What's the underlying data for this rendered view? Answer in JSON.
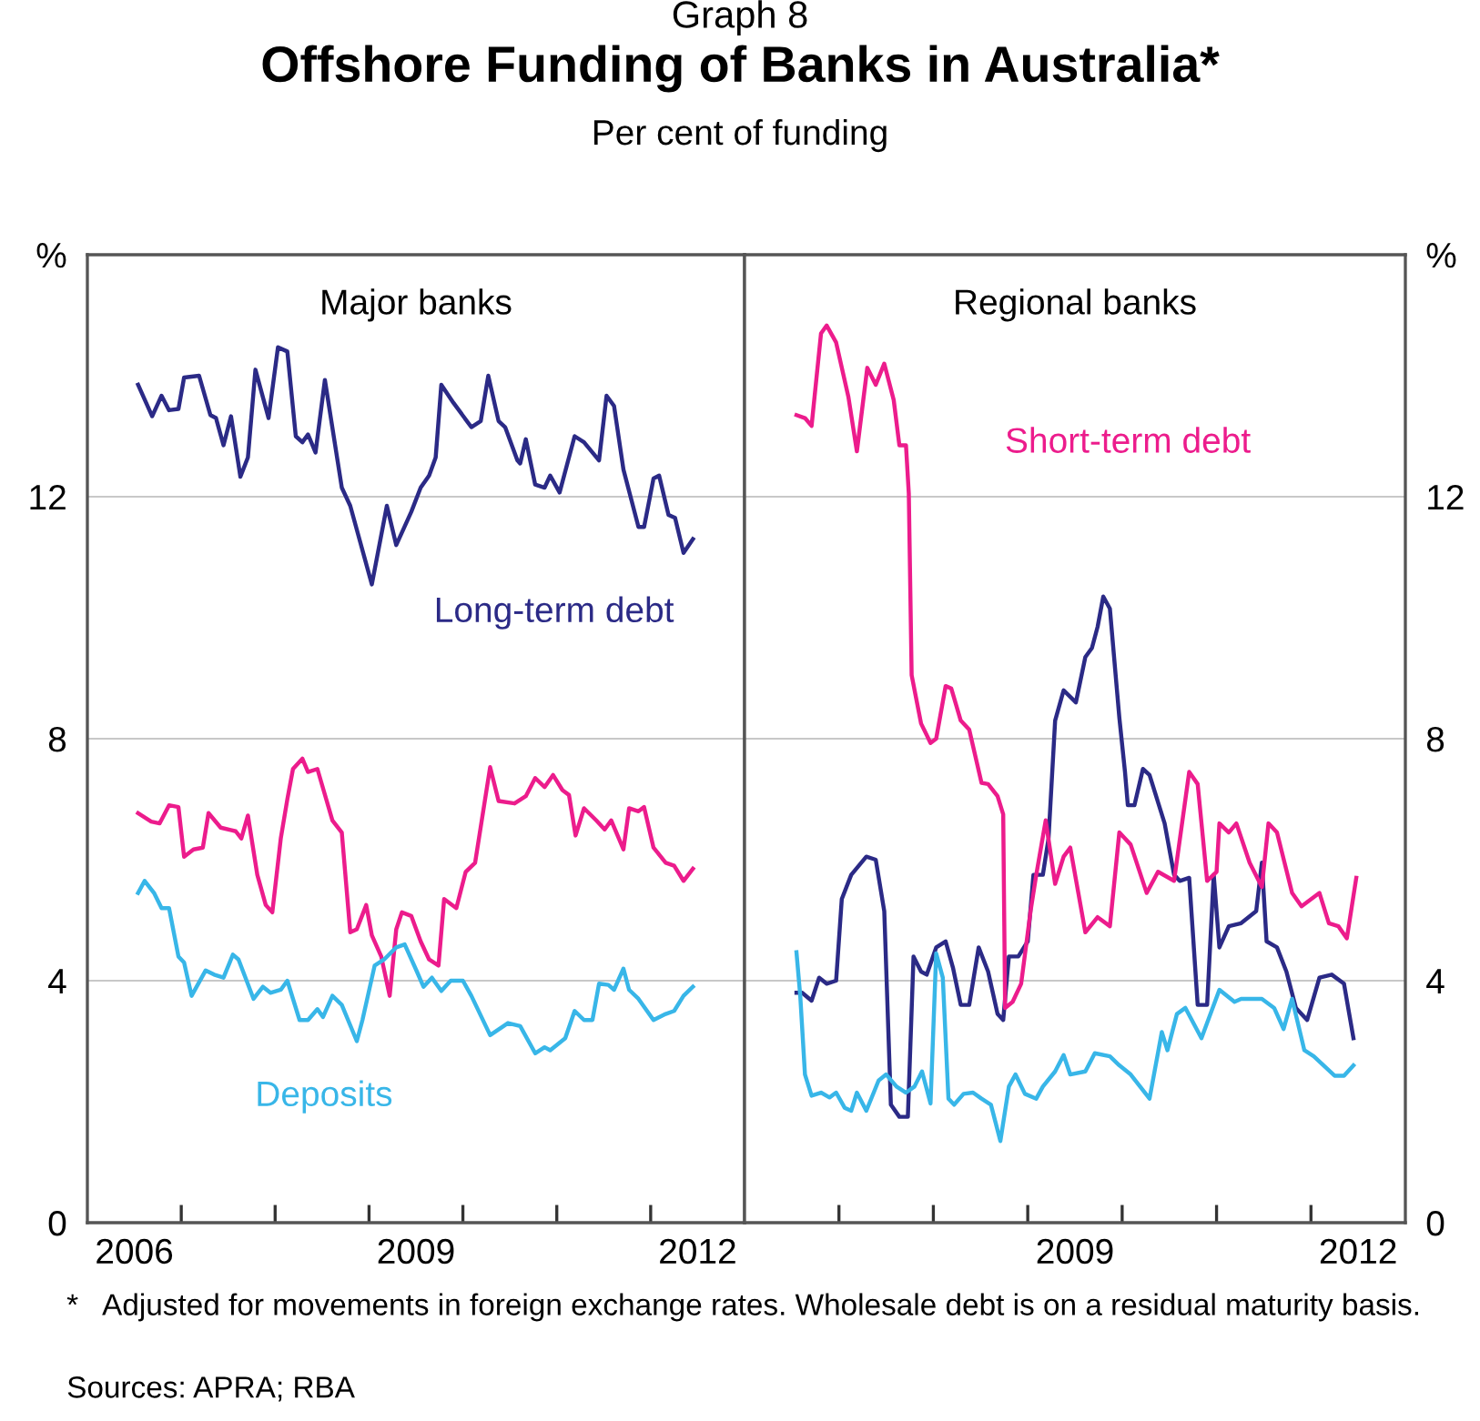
{
  "chart_data": [
    {
      "type": "line",
      "title": "Major banks",
      "annotations": [
        "Graph 8",
        "Offshore Funding of Banks in Australia*",
        "Per cent of funding",
        "*   Adjusted for movements in foreign exchange rates. Wholesale debt is on a residual maturity basis.",
        "Sources: APRA; RBA"
      ],
      "xlim": [
        2006,
        2013
      ],
      "ylim": [
        0,
        16
      ],
      "xticks": [
        {
          "value": 2006.5,
          "label": "2006"
        },
        {
          "value": 2007,
          "label": null
        },
        {
          "value": 2008,
          "label": null
        },
        {
          "value": 2009,
          "label": null
        },
        {
          "value": 2009.5,
          "label": "2009"
        },
        {
          "value": 2010,
          "label": null
        },
        {
          "value": 2011,
          "label": null
        },
        {
          "value": 2012,
          "label": null
        },
        {
          "value": 2012.5,
          "label": "2012"
        }
      ],
      "yticks": [
        0,
        4,
        8,
        12,
        {
          "value": 16,
          "label": "%"
        }
      ],
      "grid": "y",
      "legend": false,
      "line_style": "solid",
      "marker": "none",
      "series": [
        {
          "name": "Long-term debt",
          "color": "#2b2a86",
          "x": [
            2006.54,
            2006.69,
            2006.79,
            2006.87,
            2006.97,
            2007.03,
            2007.19,
            2007.31,
            2007.37,
            2007.45,
            2007.53,
            2007.63,
            2007.71,
            2007.79,
            2007.93,
            2008.03,
            2008.13,
            2008.22,
            2008.29,
            2008.35,
            2008.43,
            2008.53,
            2008.71,
            2008.8,
            2009.03,
            2009.19,
            2009.29,
            2009.45,
            2009.55,
            2009.64,
            2009.71,
            2009.77,
            2009.9,
            2010.09,
            2010.19,
            2010.27,
            2010.38,
            2010.45,
            2010.58,
            2010.61,
            2010.67,
            2010.77,
            2010.87,
            2010.93,
            2011.03,
            2011.19,
            2011.29,
            2011.45,
            2011.53,
            2011.61,
            2011.71,
            2011.87,
            2011.93,
            2012.03,
            2012.09,
            2012.19,
            2012.26,
            2012.35,
            2012.45
          ],
          "values": [
            13.85,
            13.33,
            13.67,
            13.43,
            13.45,
            13.97,
            14.0,
            13.35,
            13.3,
            12.85,
            13.33,
            12.33,
            12.65,
            14.1,
            13.3,
            14.47,
            14.4,
            13.0,
            12.9,
            13.03,
            12.73,
            13.93,
            12.15,
            11.85,
            10.55,
            11.85,
            11.2,
            11.75,
            12.15,
            12.35,
            12.65,
            13.85,
            13.55,
            13.15,
            13.25,
            14.0,
            13.25,
            13.15,
            12.6,
            12.55,
            12.95,
            12.2,
            12.15,
            12.35,
            12.07,
            13.0,
            12.9,
            12.6,
            13.67,
            13.5,
            12.45,
            11.5,
            11.5,
            12.3,
            12.35,
            11.7,
            11.65,
            11.07,
            11.3
          ]
        },
        {
          "color": "#ec1c8c",
          "x": [
            2006.54,
            2006.68,
            2006.77,
            2006.87,
            2006.97,
            2007.03,
            2007.13,
            2007.23,
            2007.29,
            2007.42,
            2007.58,
            2007.64,
            2007.71,
            2007.81,
            2007.9,
            2007.97,
            2008.06,
            2008.13,
            2008.19,
            2008.29,
            2008.35,
            2008.45,
            2008.61,
            2008.71,
            2008.8,
            2008.87,
            2008.97,
            2009.03,
            2009.13,
            2009.22,
            2009.29,
            2009.35,
            2009.45,
            2009.55,
            2009.64,
            2009.74,
            2009.8,
            2009.93,
            2010.03,
            2010.13,
            2010.29,
            2010.38,
            2010.55,
            2010.67,
            2010.77,
            2010.87,
            2010.96,
            2011.06,
            2011.13,
            2011.2,
            2011.29,
            2011.42,
            2011.51,
            2011.58,
            2011.71,
            2011.77,
            2011.87,
            2011.93,
            2012.03,
            2012.16,
            2012.25,
            2012.35,
            2012.45
          ],
          "values": [
            6.77,
            6.63,
            6.6,
            6.9,
            6.87,
            6.05,
            6.17,
            6.2,
            6.77,
            6.53,
            6.47,
            6.35,
            6.73,
            5.75,
            5.25,
            5.13,
            6.35,
            7.0,
            7.5,
            7.67,
            7.45,
            7.5,
            6.65,
            6.45,
            4.8,
            4.85,
            5.25,
            4.75,
            4.4,
            3.75,
            4.85,
            5.13,
            5.07,
            4.65,
            4.35,
            4.25,
            5.35,
            5.2,
            5.8,
            5.95,
            7.53,
            6.97,
            6.93,
            7.05,
            7.35,
            7.2,
            7.4,
            7.15,
            7.07,
            6.4,
            6.85,
            6.65,
            6.5,
            6.65,
            6.17,
            6.85,
            6.8,
            6.87,
            6.2,
            5.95,
            5.9,
            5.65,
            5.85
          ]
        },
        {
          "name": "Deposits",
          "color": "#38b6e8",
          "x": [
            2006.54,
            2006.61,
            2006.71,
            2006.79,
            2006.87,
            2006.97,
            2007.03,
            2007.11,
            2007.26,
            2007.35,
            2007.45,
            2007.55,
            2007.61,
            2007.77,
            2007.87,
            2007.95,
            2008.06,
            2008.13,
            2008.26,
            2008.35,
            2008.45,
            2008.51,
            2008.61,
            2008.71,
            2008.87,
            2008.93,
            2009.06,
            2009.16,
            2009.29,
            2009.38,
            2009.51,
            2009.58,
            2009.67,
            2009.77,
            2009.87,
            2010.0,
            2010.09,
            2010.29,
            2010.48,
            2010.61,
            2010.77,
            2010.87,
            2010.93,
            2011.09,
            2011.19,
            2011.29,
            2011.38,
            2011.45,
            2011.55,
            2011.61,
            2011.71,
            2011.77,
            2011.87,
            2012.03,
            2012.16,
            2012.25,
            2012.35,
            2012.45
          ],
          "values": [
            5.45,
            5.65,
            5.45,
            5.2,
            5.2,
            4.4,
            4.3,
            3.75,
            4.17,
            4.1,
            4.05,
            4.43,
            4.35,
            3.7,
            3.9,
            3.8,
            3.85,
            4.0,
            3.35,
            3.35,
            3.53,
            3.4,
            3.75,
            3.6,
            3.0,
            3.35,
            4.25,
            4.35,
            4.55,
            4.6,
            4.15,
            3.9,
            4.05,
            3.83,
            4.0,
            4.0,
            3.75,
            3.1,
            3.3,
            3.25,
            2.8,
            2.9,
            2.85,
            3.05,
            3.5,
            3.35,
            3.35,
            3.95,
            3.93,
            3.85,
            4.2,
            3.85,
            3.7,
            3.35,
            3.45,
            3.5,
            3.75,
            3.9
          ]
        }
      ]
    },
    {
      "type": "line",
      "title": "Regional banks",
      "xlim": [
        2006,
        2013
      ],
      "ylim": [
        0,
        16
      ],
      "xticks": [
        {
          "value": 2007,
          "label": null
        },
        {
          "value": 2008,
          "label": null
        },
        {
          "value": 2009,
          "label": null
        },
        {
          "value": 2009.5,
          "label": "2009"
        },
        {
          "value": 2010,
          "label": null
        },
        {
          "value": 2011,
          "label": null
        },
        {
          "value": 2012,
          "label": null
        },
        {
          "value": 2012.5,
          "label": "2012"
        }
      ],
      "yticks": [
        0,
        4,
        8,
        12,
        {
          "value": 16,
          "label": "%"
        }
      ],
      "grid": "y",
      "legend": false,
      "line_style": "solid",
      "marker": "none",
      "series": [
        {
          "color": "#2b2a86",
          "x": [
            2006.55,
            2006.61,
            2006.71,
            2006.79,
            2006.87,
            2006.97,
            2007.03,
            2007.13,
            2007.29,
            2007.39,
            2007.48,
            2007.55,
            2007.64,
            2007.73,
            2007.79,
            2007.87,
            2007.93,
            2008.03,
            2008.13,
            2008.21,
            2008.29,
            2008.38,
            2008.48,
            2008.58,
            2008.68,
            2008.74,
            2008.8,
            2008.9,
            2009.0,
            2009.06,
            2009.16,
            2009.22,
            2009.29,
            2009.38,
            2009.51,
            2009.61,
            2009.68,
            2009.74,
            2009.8,
            2009.87,
            2009.97,
            2010.03,
            2010.06,
            2010.13,
            2010.22,
            2010.29,
            2010.38,
            2010.45,
            2010.55,
            2010.61,
            2010.71,
            2010.8,
            2010.9,
            2010.97,
            2011.03,
            2011.13,
            2011.26,
            2011.42,
            2011.48,
            2011.53,
            2011.64,
            2011.74,
            2011.84,
            2011.96,
            2012.09,
            2012.22,
            2012.35,
            2012.45
          ],
          "values": [
            3.8,
            3.8,
            3.67,
            4.05,
            3.95,
            4.0,
            5.35,
            5.75,
            6.05,
            6.0,
            5.15,
            1.95,
            1.75,
            1.75,
            4.4,
            4.15,
            4.1,
            4.55,
            4.65,
            4.2,
            3.6,
            3.6,
            4.55,
            4.15,
            3.45,
            3.35,
            4.4,
            4.4,
            4.65,
            5.75,
            5.75,
            6.35,
            8.3,
            8.8,
            8.6,
            9.35,
            9.5,
            9.85,
            10.35,
            10.15,
            8.35,
            7.45,
            6.9,
            6.9,
            7.5,
            7.4,
            6.95,
            6.6,
            5.75,
            5.65,
            5.7,
            3.6,
            3.6,
            5.75,
            4.55,
            4.9,
            4.95,
            5.15,
            5.95,
            4.65,
            4.55,
            4.15,
            3.55,
            3.35,
            4.05,
            4.1,
            3.95,
            3.05
          ]
        },
        {
          "name": "Short-term debt",
          "color": "#ec1c8c",
          "x": [
            2006.55,
            2006.64,
            2006.71,
            2006.81,
            2006.87,
            2006.97,
            2007.1,
            2007.19,
            2007.3,
            2007.39,
            2007.48,
            2007.58,
            2007.64,
            2007.71,
            2007.74,
            2007.77,
            2007.87,
            2007.97,
            2008.03,
            2008.13,
            2008.19,
            2008.29,
            2008.38,
            2008.51,
            2008.58,
            2008.68,
            2008.74,
            2008.76,
            2008.84,
            2008.93,
            2009.03,
            2009.09,
            2009.19,
            2009.29,
            2009.38,
            2009.45,
            2009.61,
            2009.74,
            2009.87,
            2009.97,
            2010.09,
            2010.26,
            2010.38,
            2010.55,
            2010.71,
            2010.8,
            2010.9,
            2011.0,
            2011.03,
            2011.13,
            2011.21,
            2011.35,
            2011.48,
            2011.55,
            2011.64,
            2011.8,
            2011.9,
            2012.09,
            2012.19,
            2012.29,
            2012.38,
            2012.48
          ],
          "values": [
            13.35,
            13.3,
            13.17,
            14.7,
            14.83,
            14.55,
            13.65,
            12.75,
            14.13,
            13.85,
            14.2,
            13.6,
            12.85,
            12.85,
            12.05,
            9.05,
            8.25,
            7.93,
            8.0,
            8.87,
            8.83,
            8.3,
            8.15,
            7.27,
            7.25,
            7.05,
            6.75,
            3.55,
            3.65,
            3.95,
            5.15,
            5.75,
            6.65,
            5.6,
            6.05,
            6.2,
            4.8,
            5.05,
            4.9,
            6.45,
            6.25,
            5.45,
            5.8,
            5.65,
            7.45,
            7.25,
            5.65,
            5.8,
            6.6,
            6.45,
            6.6,
            5.95,
            5.55,
            6.6,
            6.45,
            5.45,
            5.23,
            5.45,
            4.95,
            4.9,
            4.7,
            5.7
          ]
        },
        {
          "color": "#38b6e8",
          "x": [
            2006.55,
            2006.59,
            2006.64,
            2006.71,
            2006.81,
            2006.9,
            2006.97,
            2007.06,
            2007.13,
            2007.19,
            2007.29,
            2007.42,
            2007.5,
            2007.61,
            2007.71,
            2007.8,
            2007.88,
            2007.97,
            2008.03,
            2008.1,
            2008.16,
            2008.22,
            2008.32,
            2008.42,
            2008.51,
            2008.61,
            2008.71,
            2008.8,
            2008.87,
            2008.97,
            2009.09,
            2009.16,
            2009.29,
            2009.38,
            2009.45,
            2009.61,
            2009.71,
            2009.87,
            2009.97,
            2010.09,
            2010.29,
            2010.42,
            2010.48,
            2010.58,
            2010.67,
            2010.84,
            2011.03,
            2011.19,
            2011.26,
            2011.45,
            2011.48,
            2011.61,
            2011.71,
            2011.8,
            2011.93,
            2012.03,
            2012.25,
            2012.35,
            2012.45
          ],
          "values": [
            4.47,
            3.75,
            2.45,
            2.1,
            2.15,
            2.07,
            2.15,
            1.9,
            1.85,
            2.15,
            1.85,
            2.35,
            2.45,
            2.25,
            2.15,
            2.25,
            2.5,
            1.97,
            4.45,
            4.05,
            2.05,
            1.95,
            2.13,
            2.15,
            2.05,
            1.95,
            1.35,
            2.25,
            2.45,
            2.13,
            2.05,
            2.25,
            2.5,
            2.77,
            2.45,
            2.5,
            2.8,
            2.75,
            2.6,
            2.45,
            2.05,
            3.15,
            2.85,
            3.45,
            3.55,
            3.05,
            3.85,
            3.65,
            3.7,
            3.7,
            3.7,
            3.55,
            3.2,
            3.7,
            2.85,
            2.75,
            2.43,
            2.43,
            2.6
          ]
        }
      ]
    }
  ]
}
